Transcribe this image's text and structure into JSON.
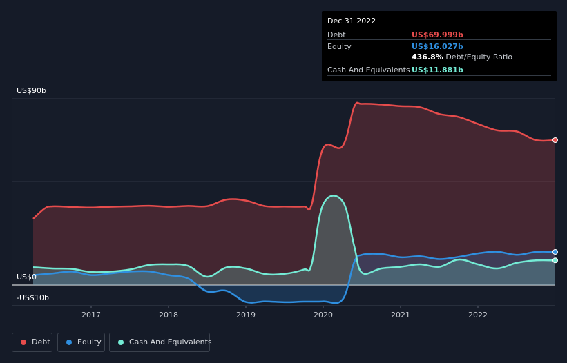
{
  "tooltip": {
    "date": "Dec 31 2022",
    "debt_label": "Debt",
    "debt_value": "US$69.999b",
    "equity_label": "Equity",
    "equity_value": "US$16.027b",
    "ratio_value": "436.8%",
    "ratio_label": "Debt/Equity Ratio",
    "cash_label": "Cash And Equivalents",
    "cash_value": "US$11.881b"
  },
  "colors": {
    "debt": "#e64c4c",
    "equity": "#2f8fe0",
    "cash": "#74ebd5",
    "background": "#151b28"
  },
  "chart_data": {
    "type": "area",
    "ylabels": {
      "top": "US$90b",
      "zero": "US$0",
      "bottom": "-US$10b"
    },
    "ylim": [
      -10,
      90
    ],
    "xlim": [
      2016.25,
      2023.0
    ],
    "x_ticks": [
      "2017",
      "2018",
      "2019",
      "2020",
      "2021",
      "2022"
    ],
    "x_tick_values": [
      2017,
      2018,
      2019,
      2020,
      2021,
      2022
    ],
    "legend_position": "bottom-left",
    "series": [
      {
        "name": "Debt",
        "color": "#e64c4c",
        "x": [
          2016.25,
          2016.4,
          2016.5,
          2016.75,
          2017.0,
          2017.25,
          2017.5,
          2017.75,
          2018.0,
          2018.25,
          2018.5,
          2018.75,
          2019.0,
          2019.25,
          2019.5,
          2019.75,
          2019.85,
          2020.0,
          2020.25,
          2020.4,
          2020.5,
          2020.75,
          2021.0,
          2021.25,
          2021.5,
          2021.75,
          2022.0,
          2022.25,
          2022.5,
          2022.75,
          2023.0
        ],
        "y": [
          32,
          37,
          38,
          37.7,
          37.4,
          37.8,
          38,
          38.3,
          37.8,
          38.2,
          38.1,
          41.3,
          40.8,
          38.1,
          37.9,
          37.9,
          38.8,
          66.1,
          67.1,
          86,
          87.5,
          87.2,
          86.4,
          85.9,
          82.6,
          81.2,
          77.8,
          74.7,
          74.2,
          70,
          70
        ]
      },
      {
        "name": "Equity",
        "color": "#2f8fe0",
        "x": [
          2016.25,
          2016.5,
          2016.75,
          2017.0,
          2017.25,
          2017.5,
          2017.75,
          2018.0,
          2018.25,
          2018.5,
          2018.75,
          2019.0,
          2019.25,
          2019.5,
          2019.75,
          2020.0,
          2020.25,
          2020.4,
          2020.5,
          2020.75,
          2021.0,
          2021.25,
          2021.5,
          2021.75,
          2022.0,
          2022.25,
          2022.5,
          2022.75,
          2023.0
        ],
        "y": [
          4.8,
          5.6,
          6.5,
          4.8,
          5.6,
          6.5,
          6.6,
          4.8,
          3.2,
          -3.1,
          -2.8,
          -8.2,
          -7.9,
          -8.3,
          -8,
          -7.9,
          -7,
          11,
          14.6,
          15,
          13.4,
          13.9,
          12.5,
          13.6,
          15.3,
          16.1,
          14.6,
          16,
          16
        ]
      },
      {
        "name": "Cash And Equivalents",
        "color": "#74ebd5",
        "x": [
          2016.25,
          2016.5,
          2016.75,
          2017.0,
          2017.25,
          2017.5,
          2017.75,
          2018.0,
          2018.25,
          2018.5,
          2018.75,
          2019.0,
          2019.25,
          2019.5,
          2019.75,
          2019.85,
          2020.0,
          2020.25,
          2020.4,
          2020.5,
          2020.75,
          2021.0,
          2021.25,
          2021.5,
          2021.75,
          2022.0,
          2022.25,
          2022.5,
          2022.75,
          2023.0
        ],
        "y": [
          8.6,
          8,
          7.8,
          6.3,
          6.5,
          7.5,
          9.7,
          10,
          9.3,
          4,
          8.5,
          8,
          5.3,
          5.4,
          7.5,
          10,
          39,
          40.5,
          19,
          6,
          8,
          8.8,
          10,
          8.8,
          12.3,
          10,
          8,
          10.7,
          11.9,
          11.9
        ]
      }
    ]
  },
  "legend": {
    "debt": "Debt",
    "equity": "Equity",
    "cash": "Cash And Equivalents"
  }
}
